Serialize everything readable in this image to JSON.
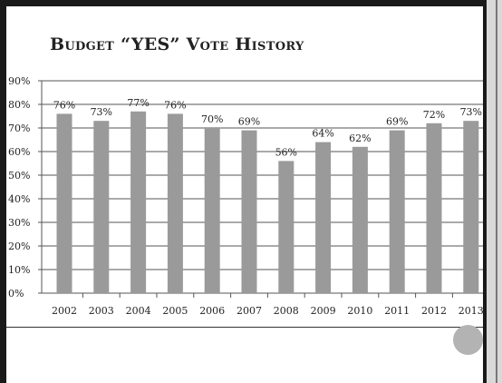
{
  "slide": {
    "title": "Budget “YES” Vote History"
  },
  "chart_data": {
    "type": "bar",
    "title": "Budget “YES” Vote History",
    "xlabel": "",
    "ylabel": "",
    "categories": [
      "2002",
      "2003",
      "2004",
      "2005",
      "2006",
      "2007",
      "2008",
      "2009",
      "2010",
      "2011",
      "2012",
      "2013"
    ],
    "values": [
      76,
      73,
      77,
      76,
      70,
      69,
      56,
      64,
      62,
      69,
      72,
      73
    ],
    "data_labels": [
      "76%",
      "73%",
      "77%",
      "76%",
      "70%",
      "69%",
      "56%",
      "64%",
      "62%",
      "69%",
      "72%",
      "73%"
    ],
    "y_ticks": [
      0,
      10,
      20,
      30,
      40,
      50,
      60,
      70,
      80,
      90
    ],
    "y_tick_labels": [
      "0%",
      "10%",
      "20%",
      "30%",
      "40%",
      "50%",
      "60%",
      "70%",
      "80%",
      "90%"
    ],
    "ylim": [
      0,
      90
    ],
    "grid": true,
    "legend": "none",
    "colors": {
      "bar": "#9a9a9a",
      "grid": "#555555"
    }
  },
  "icons": [
    "circle-icon"
  ]
}
